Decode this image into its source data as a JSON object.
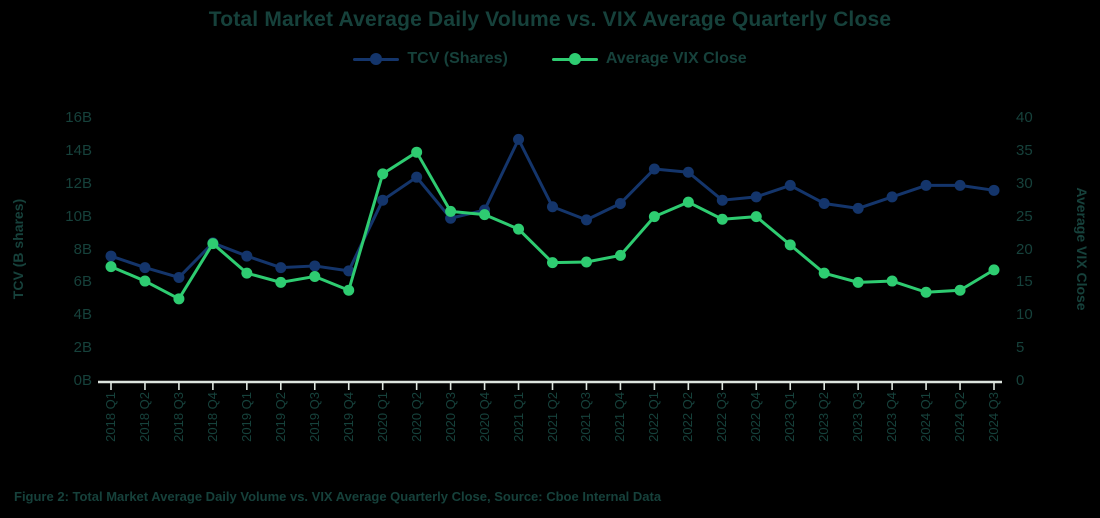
{
  "chart_data": {
    "type": "line",
    "title": "Total Market Average Daily Volume vs. VIX Average Quarterly Close",
    "categories": [
      "2018 Q1",
      "2018 Q2",
      "2018 Q3",
      "2018 Q4",
      "2019 Q1",
      "2019 Q2",
      "2019 Q3",
      "2019 Q4",
      "2020 Q1",
      "2020 Q2",
      "2020 Q3",
      "2020 Q4",
      "2021 Q1",
      "2021 Q2",
      "2021 Q3",
      "2021 Q4",
      "2022 Q1",
      "2022 Q2",
      "2022 Q3",
      "2022 Q4",
      "2023 Q1",
      "2023 Q2",
      "2023 Q3",
      "2023 Q4",
      "2024 Q1",
      "2024 Q2",
      "2024 Q3"
    ],
    "series": [
      {
        "name": "TCV (Shares)",
        "axis": "left",
        "color": "#14356b",
        "values": [
          7.6,
          6.9,
          6.3,
          8.4,
          7.6,
          6.9,
          7.0,
          6.7,
          11.0,
          12.4,
          9.9,
          10.4,
          14.7,
          10.6,
          9.8,
          10.8,
          12.9,
          12.7,
          11.0,
          11.2,
          11.9,
          10.8,
          10.5,
          11.2,
          11.9,
          11.9,
          11.6
        ]
      },
      {
        "name": "Average VIX Close",
        "axis": "right",
        "color": "#2ecc71",
        "values": [
          17.4,
          15.2,
          12.5,
          20.9,
          16.4,
          15.0,
          15.9,
          13.8,
          31.5,
          34.8,
          25.8,
          25.3,
          23.1,
          18.0,
          18.1,
          19.1,
          25.0,
          27.2,
          24.6,
          25.0,
          20.7,
          16.4,
          15.0,
          15.2,
          13.5,
          13.8,
          16.9
        ]
      }
    ],
    "left_axis": {
      "title": "TCV (B shares)",
      "min": 0,
      "max": 16,
      "ticks": [
        "16B",
        "14B",
        "12B",
        "10B",
        "8B",
        "6B",
        "4B",
        "2B",
        "0B"
      ]
    },
    "right_axis": {
      "title": "Average VIX Close",
      "min": 0,
      "max": 40,
      "ticks": [
        "40",
        "35",
        "30",
        "25",
        "20",
        "15",
        "10",
        "5",
        "0"
      ]
    },
    "legend_position": "top",
    "grid": false,
    "background_color": "#000000",
    "text_color": "#16413b",
    "axis_line_color": "#dde4de"
  },
  "footer": {
    "caption": "Figure 2: Total Market Average Daily Volume vs. VIX Average Quarterly Close, Source: Cboe Internal Data"
  }
}
